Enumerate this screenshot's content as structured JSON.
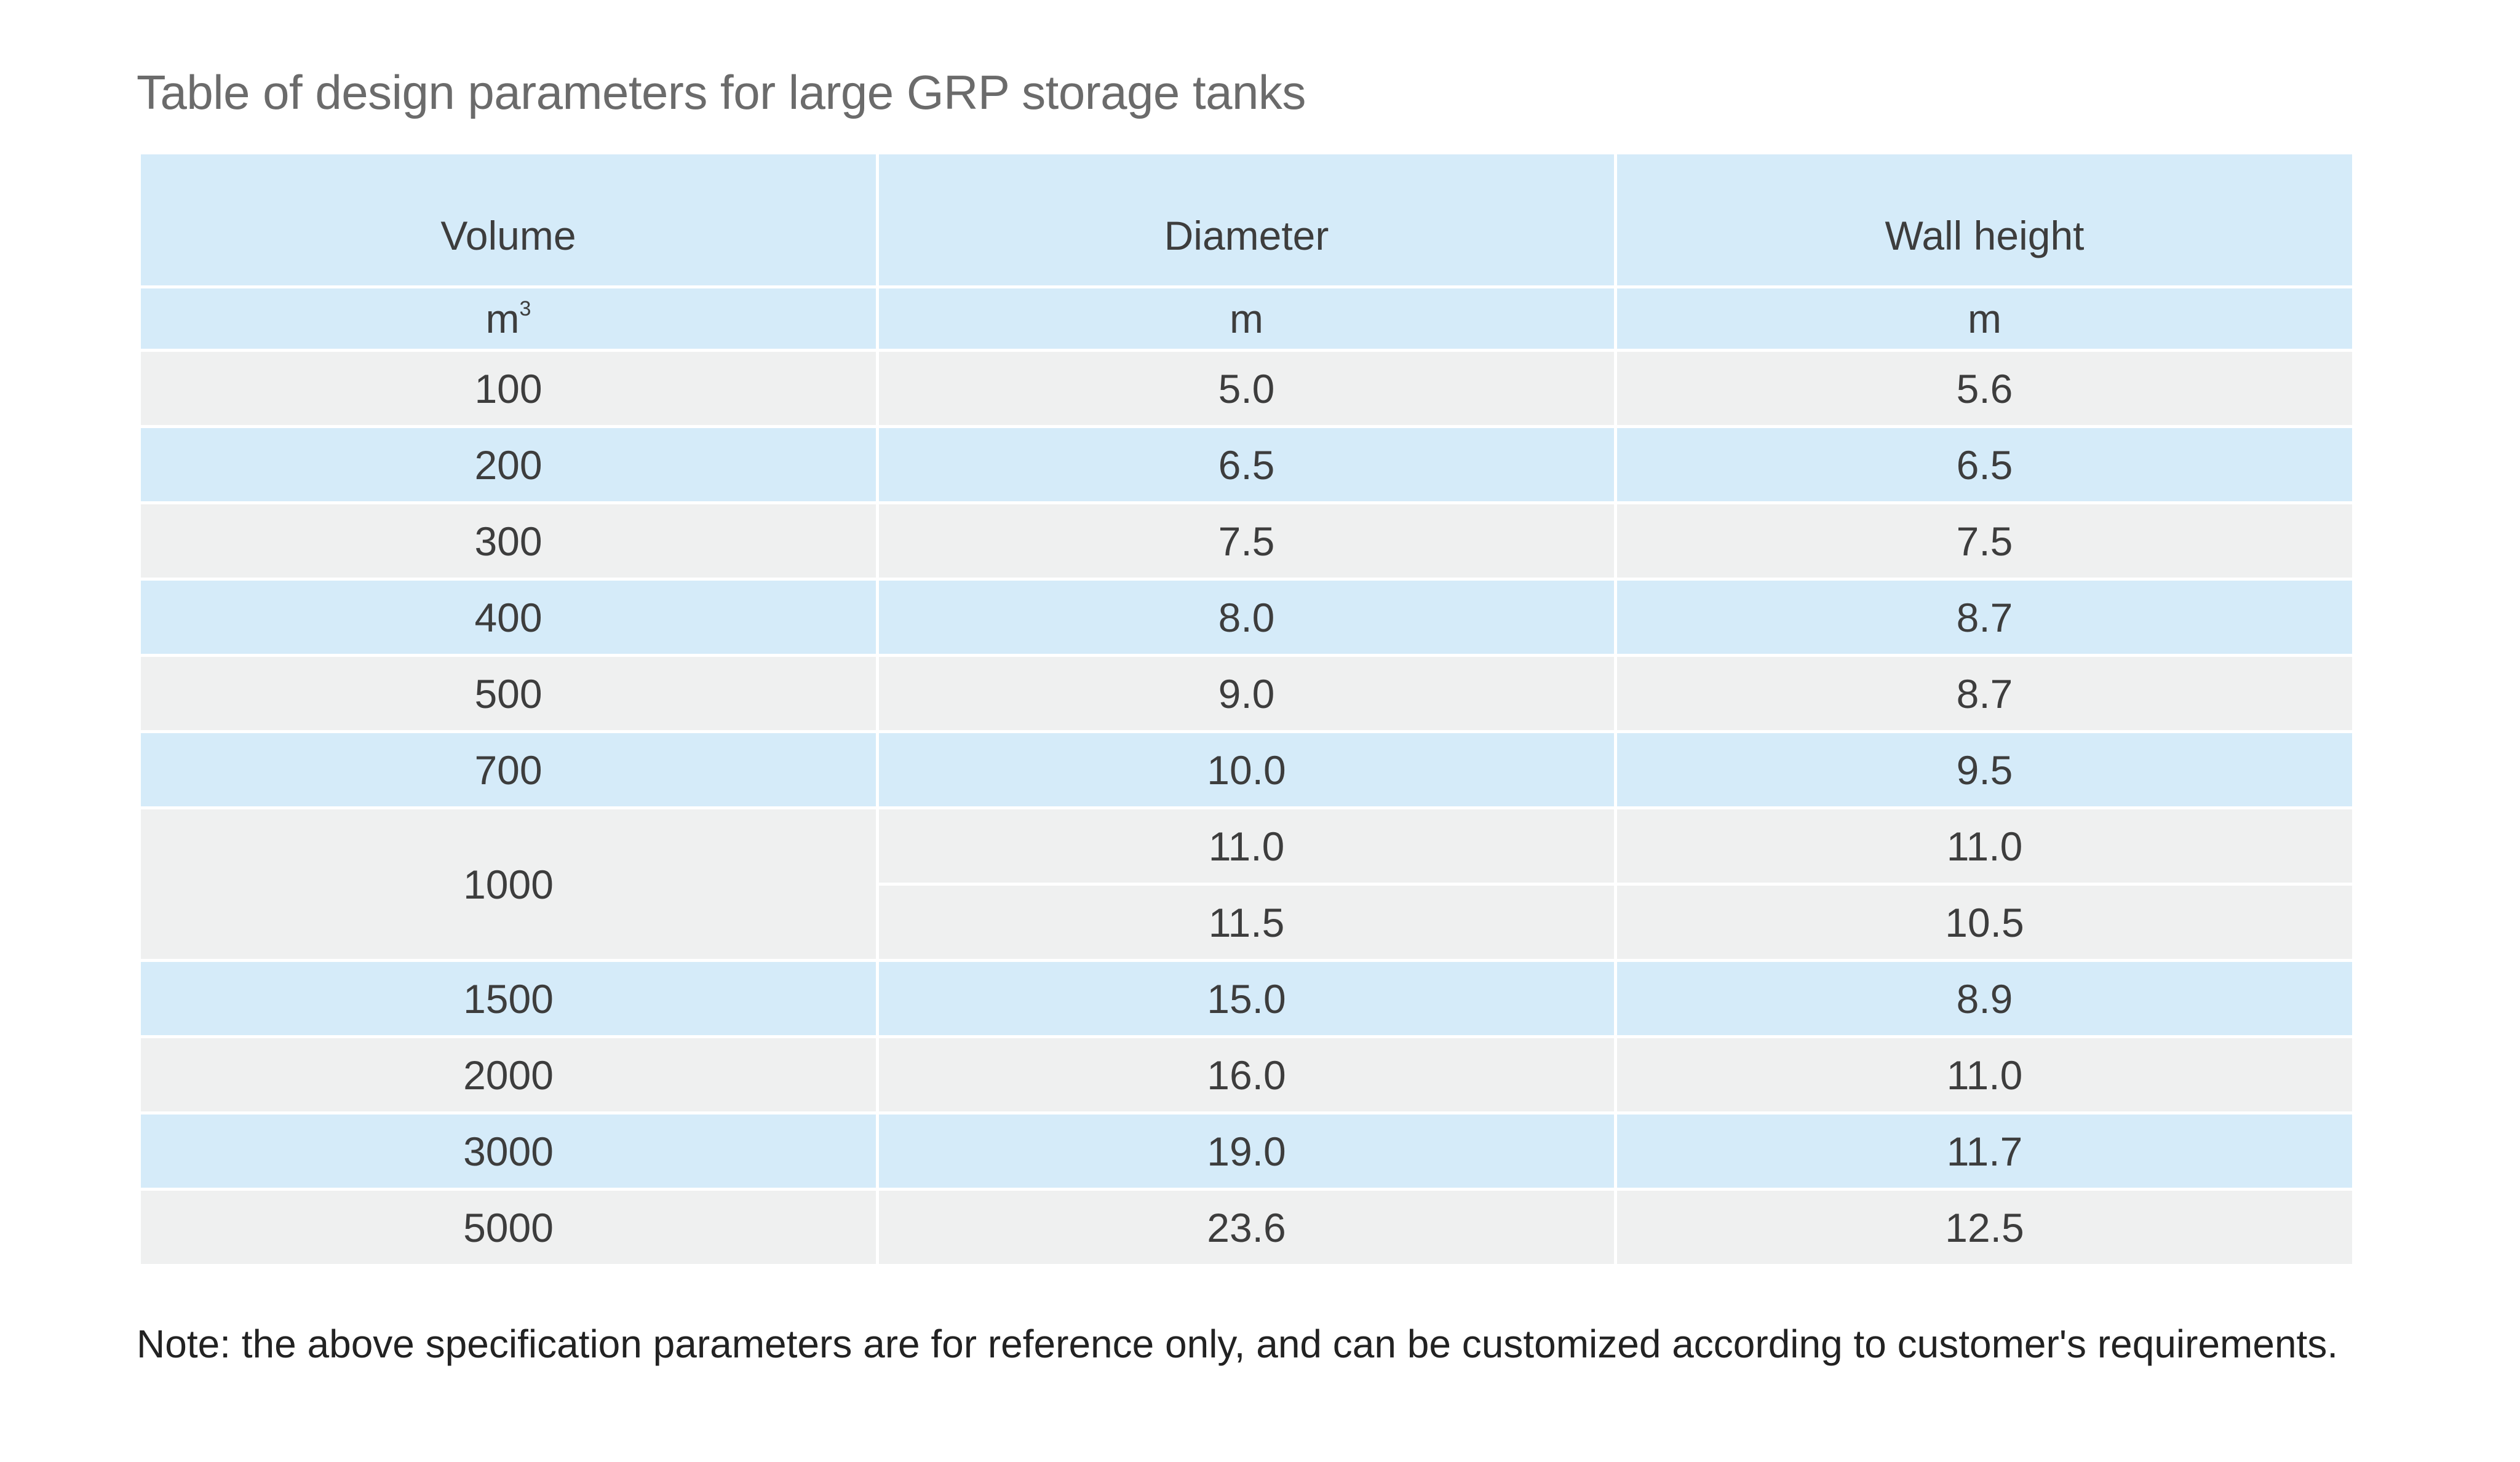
{
  "title": "Table of design parameters for large GRP storage tanks",
  "table": {
    "headers": [
      "Volume",
      "Diameter",
      "Wall height"
    ],
    "units": {
      "volume_base": "m",
      "volume_exp": "3",
      "diameter": "m",
      "wall_height": "m"
    },
    "rows": [
      {
        "volume": "100",
        "diameter": "5.0",
        "wall_height": "5.6"
      },
      {
        "volume": "200",
        "diameter": "6.5",
        "wall_height": "6.5"
      },
      {
        "volume": "300",
        "diameter": "7.5",
        "wall_height": "7.5"
      },
      {
        "volume": "400",
        "diameter": "8.0",
        "wall_height": "8.7"
      },
      {
        "volume": "500",
        "diameter": "9.0",
        "wall_height": "8.7"
      },
      {
        "volume": "700",
        "diameter": "10.0",
        "wall_height": "9.5"
      },
      {
        "volume": "1000",
        "diameter": "11.0",
        "wall_height": "11.0"
      },
      {
        "volume": "",
        "diameter": "11.5",
        "wall_height": "10.5"
      },
      {
        "volume": "1500",
        "diameter": "15.0",
        "wall_height": "8.9"
      },
      {
        "volume": "2000",
        "diameter": "16.0",
        "wall_height": "11.0"
      },
      {
        "volume": "3000",
        "diameter": "19.0",
        "wall_height": "11.7"
      },
      {
        "volume": "5000",
        "diameter": "23.6",
        "wall_height": "12.5"
      }
    ]
  },
  "note": "Note: the above specification parameters are for reference only, and can be customized according to customer's requirements.",
  "colors": {
    "header_bg": "#d5ebf9",
    "row_gray": "#eff0f0",
    "row_blue": "#d5ebf9",
    "border": "#ffffff"
  }
}
